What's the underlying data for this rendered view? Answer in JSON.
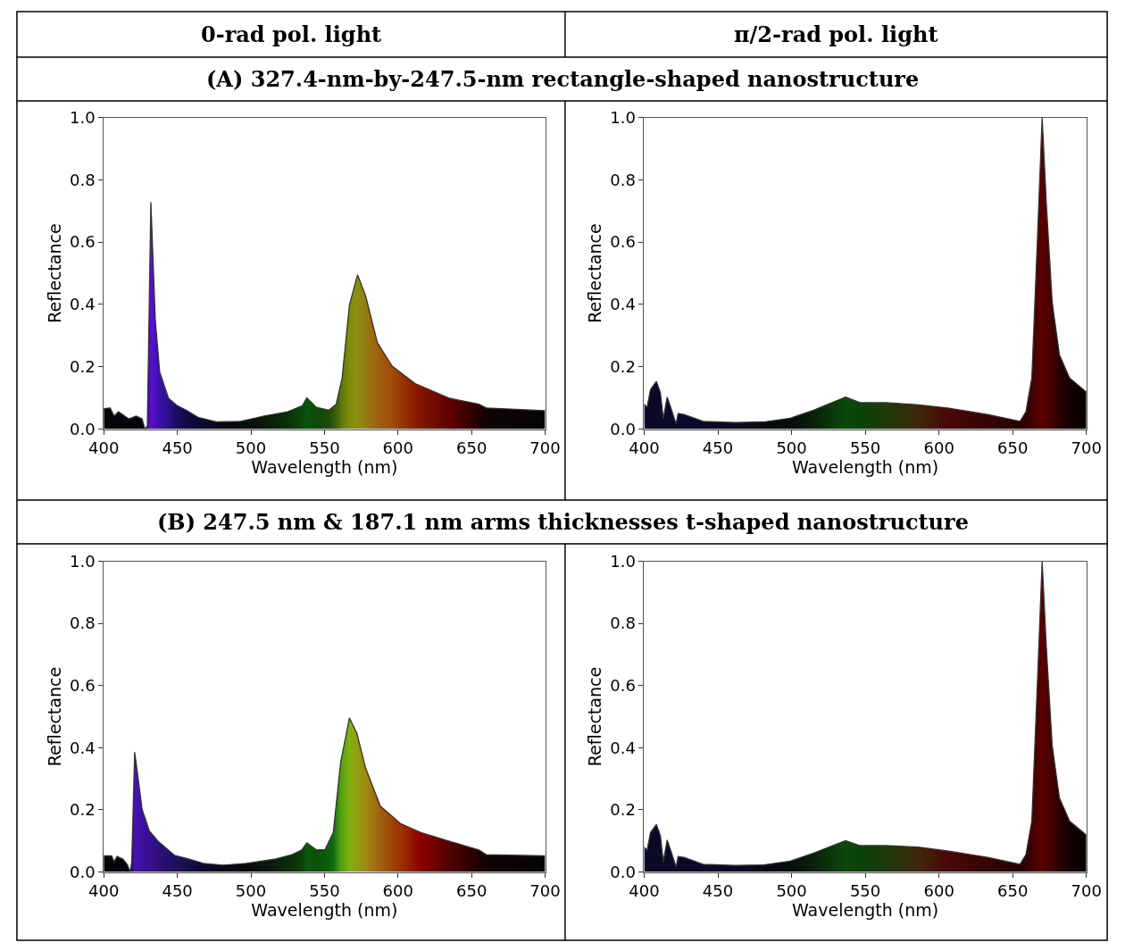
{
  "chart_data": [
    {
      "type": "area",
      "title": "(A) 327.4-nm-by-247.5-nm rectangle-shaped nanostructure",
      "annotations": [
        "0-rad pol. light",
        "π/2-rad pol. light"
      ],
      "xlabel": "Wavelength (nm)",
      "ylabel": "Reflectance",
      "xlim": [
        400,
        700
      ],
      "ylim": [
        0,
        1
      ],
      "xticks": [
        400,
        450,
        500,
        550,
        600,
        650,
        700
      ],
      "yticks": [
        {
          "value": 0,
          "label": "0.0"
        },
        {
          "value": 0.2,
          "label": "0.2"
        },
        {
          "value": 0.4,
          "label": "0.4"
        },
        {
          "value": 0.6,
          "label": "0.6"
        },
        {
          "value": 0.8,
          "label": "0.8"
        },
        {
          "value": 1,
          "label": "1.0"
        }
      ],
      "x": [
        400,
        404.3,
        407,
        410,
        417,
        422,
        426,
        428,
        429.6,
        432,
        435,
        438,
        444,
        450,
        456,
        464,
        477,
        493,
        509,
        525,
        535,
        538,
        544.5,
        553,
        558,
        562,
        567,
        572.5,
        578,
        586,
        596,
        611.6,
        635,
        655,
        660,
        700
      ],
      "series": [
        {
          "color": "#333333",
          "values": [
            0.066,
            0.068,
            0.042,
            0.056,
            0.033,
            0.042,
            0.033,
            0.0,
            0.01,
            0.728,
            0.352,
            0.183,
            0.099,
            0.075,
            0.061,
            0.038,
            0.023,
            0.025,
            0.042,
            0.056,
            0.075,
            0.1,
            0.07,
            0.061,
            0.08,
            0.164,
            0.399,
            0.495,
            0.427,
            0.277,
            0.202,
            0.146,
            0.099,
            0.08,
            0.068,
            0.059
          ],
          "colors": [
            "#05050a",
            "#05050a",
            "#05050a",
            "#05050a",
            "#05050a",
            "#05050a",
            "#05050a",
            "#05050a",
            "#3a0a90",
            "#5a10d0",
            "#4a10c0",
            "#3a10a8",
            "#2a1088",
            "#1a0c60",
            "#100a48",
            "#0a0a30",
            "#05081a",
            "#050a0a",
            "#0a180a",
            "#0a300a",
            "#0a4a0a",
            "#0a550a",
            "#0a4a0a",
            "#204a0a",
            "#3a600a",
            "#607a0a",
            "#808c0a",
            "#8a9010",
            "#967a10",
            "#a06010",
            "#a04a08",
            "#8a1a00",
            "#600000",
            "#250000",
            "#100505",
            "#050505"
          ]
        }
      ]
    },
    {
      "type": "area",
      "xlabel": "Wavelength (nm)",
      "ylabel": "Reflectance",
      "xlim": [
        400,
        700
      ],
      "ylim": [
        0,
        1
      ],
      "xticks": [
        400,
        450,
        500,
        550,
        600,
        650,
        700
      ],
      "yticks": [
        {
          "value": 0,
          "label": "0.0"
        },
        {
          "value": 0.2,
          "label": "0.2"
        },
        {
          "value": 0.4,
          "label": "0.4"
        },
        {
          "value": 0.6,
          "label": "0.6"
        },
        {
          "value": 0.8,
          "label": "0.8"
        },
        {
          "value": 1,
          "label": "1.0"
        }
      ],
      "x": [
        400,
        402,
        404.3,
        408.3,
        411,
        413,
        415.6,
        418,
        421.7,
        423,
        427,
        440,
        461.6,
        481,
        499,
        515,
        536.6,
        546.5,
        564,
        586,
        605.7,
        633,
        655,
        659,
        663,
        667,
        670,
        672.8,
        676.8,
        681.7,
        688.6,
        700
      ],
      "series": [
        {
          "color": "#333333",
          "values": [
            0.08,
            0.07,
            0.127,
            0.153,
            0.117,
            0.033,
            0.103,
            0.07,
            0.016,
            0.05,
            0.047,
            0.025,
            0.021,
            0.023,
            0.035,
            0.061,
            0.103,
            0.085,
            0.085,
            0.078,
            0.068,
            0.047,
            0.025,
            0.056,
            0.164,
            0.634,
            1.0,
            0.728,
            0.408,
            0.239,
            0.164,
            0.119
          ],
          "colors": [
            "#0a0a28",
            "#0a0a28",
            "#0a0a28",
            "#0a0a28",
            "#0a0a28",
            "#0a0a28",
            "#0a0a28",
            "#0a0a28",
            "#0a0a28",
            "#0a0a28",
            "#0a0a28",
            "#0a0a28",
            "#080a20",
            "#050a10",
            "#050d08",
            "#0a200a",
            "#0a4a0a",
            "#0a420a",
            "#1e3a0a",
            "#40280a",
            "#4a0808",
            "#350505",
            "#250000",
            "#300000",
            "#400000",
            "#500000",
            "#5a0000",
            "#500000",
            "#400000",
            "#2a0000",
            "#150000",
            "#050000"
          ]
        }
      ]
    },
    {
      "type": "area",
      "title": "(B) 247.5 nm & 187.1 nm arms thicknesses t-shaped nanostructure",
      "xlabel": "Wavelength (nm)",
      "ylabel": "Reflectance",
      "xlim": [
        400,
        700
      ],
      "ylim": [
        0,
        1
      ],
      "xticks": [
        400,
        450,
        500,
        550,
        600,
        650,
        700
      ],
      "yticks": [
        {
          "value": 0,
          "label": "0.0"
        },
        {
          "value": 0.2,
          "label": "0.2"
        },
        {
          "value": 0.4,
          "label": "0.4"
        },
        {
          "value": 0.6,
          "label": "0.6"
        },
        {
          "value": 0.8,
          "label": "0.8"
        },
        {
          "value": 1,
          "label": "1.0"
        }
      ],
      "x": [
        400,
        405.3,
        407,
        409,
        413,
        416,
        418,
        419,
        421,
        424,
        426,
        431,
        437,
        448,
        457.6,
        467.5,
        481,
        497,
        517,
        528,
        534.6,
        538,
        544.5,
        550.4,
        556,
        561,
        567,
        572,
        578,
        588,
        602,
        615.6,
        635,
        655,
        660,
        700
      ],
      "series": [
        {
          "color": "#333333",
          "values": [
            0.052,
            0.052,
            0.033,
            0.05,
            0.042,
            0.024,
            0.0,
            0.033,
            0.386,
            0.278,
            0.202,
            0.132,
            0.099,
            0.054,
            0.042,
            0.028,
            0.022,
            0.028,
            0.042,
            0.056,
            0.071,
            0.094,
            0.071,
            0.072,
            0.127,
            0.353,
            0.496,
            0.447,
            0.334,
            0.212,
            0.155,
            0.127,
            0.099,
            0.071,
            0.056,
            0.052
          ],
          "colors": [
            "#05050a",
            "#05050a",
            "#05050a",
            "#05050a",
            "#05050a",
            "#05050a",
            "#05050a",
            "#2a0a70",
            "#4a10b0",
            "#4010a8",
            "#3a10a0",
            "#3a1090",
            "#2e1078",
            "#201060",
            "#141048",
            "#0a0a30",
            "#05081a",
            "#050a0a",
            "#0a200a",
            "#0a300a",
            "#0a400a",
            "#0a5a0a",
            "#0a500a",
            "#0a5a0a",
            "#106a10",
            "#50a010",
            "#80b010",
            "#90a010",
            "#a08a10",
            "#a06010",
            "#a03000",
            "#8a0000",
            "#500000",
            "#200000",
            "#100505",
            "#050505"
          ]
        }
      ]
    },
    {
      "type": "area",
      "xlabel": "Wavelength (nm)",
      "ylabel": "Reflectance",
      "xlim": [
        400,
        700
      ],
      "ylim": [
        0,
        1
      ],
      "xticks": [
        400,
        450,
        500,
        550,
        600,
        650,
        700
      ],
      "yticks": [
        {
          "value": 0,
          "label": "0.0"
        },
        {
          "value": 0.2,
          "label": "0.2"
        },
        {
          "value": 0.4,
          "label": "0.4"
        },
        {
          "value": 0.6,
          "label": "0.6"
        },
        {
          "value": 0.8,
          "label": "0.8"
        },
        {
          "value": 1,
          "label": "1.0"
        }
      ],
      "x": [
        400,
        402,
        404.3,
        408.3,
        411,
        413,
        415.6,
        418,
        421.7,
        423,
        427,
        440,
        461.6,
        481,
        499,
        515,
        536.6,
        546.5,
        564,
        586,
        605.7,
        633,
        655,
        659,
        663,
        667,
        670,
        672.8,
        676.8,
        681.7,
        688.6,
        700
      ],
      "series": [
        {
          "color": "#333333",
          "values": [
            0.08,
            0.07,
            0.127,
            0.153,
            0.117,
            0.033,
            0.103,
            0.07,
            0.016,
            0.05,
            0.047,
            0.025,
            0.021,
            0.023,
            0.035,
            0.061,
            0.101,
            0.085,
            0.085,
            0.08,
            0.068,
            0.047,
            0.025,
            0.056,
            0.164,
            0.634,
            1.0,
            0.728,
            0.408,
            0.239,
            0.164,
            0.119
          ],
          "colors": [
            "#0a0a28",
            "#0a0a28",
            "#0a0a28",
            "#0a0a28",
            "#0a0a28",
            "#0a0a28",
            "#0a0a28",
            "#0a0a28",
            "#0a0a28",
            "#0a0a28",
            "#0a0a28",
            "#0a0a28",
            "#080a20",
            "#050a10",
            "#050d08",
            "#0a200a",
            "#0a4a0a",
            "#0a420a",
            "#1e3a0a",
            "#40280a",
            "#4a0808",
            "#350505",
            "#250000",
            "#300000",
            "#400000",
            "#500000",
            "#5a0000",
            "#500000",
            "#400000",
            "#2a0000",
            "#150000",
            "#050000"
          ]
        }
      ]
    }
  ]
}
